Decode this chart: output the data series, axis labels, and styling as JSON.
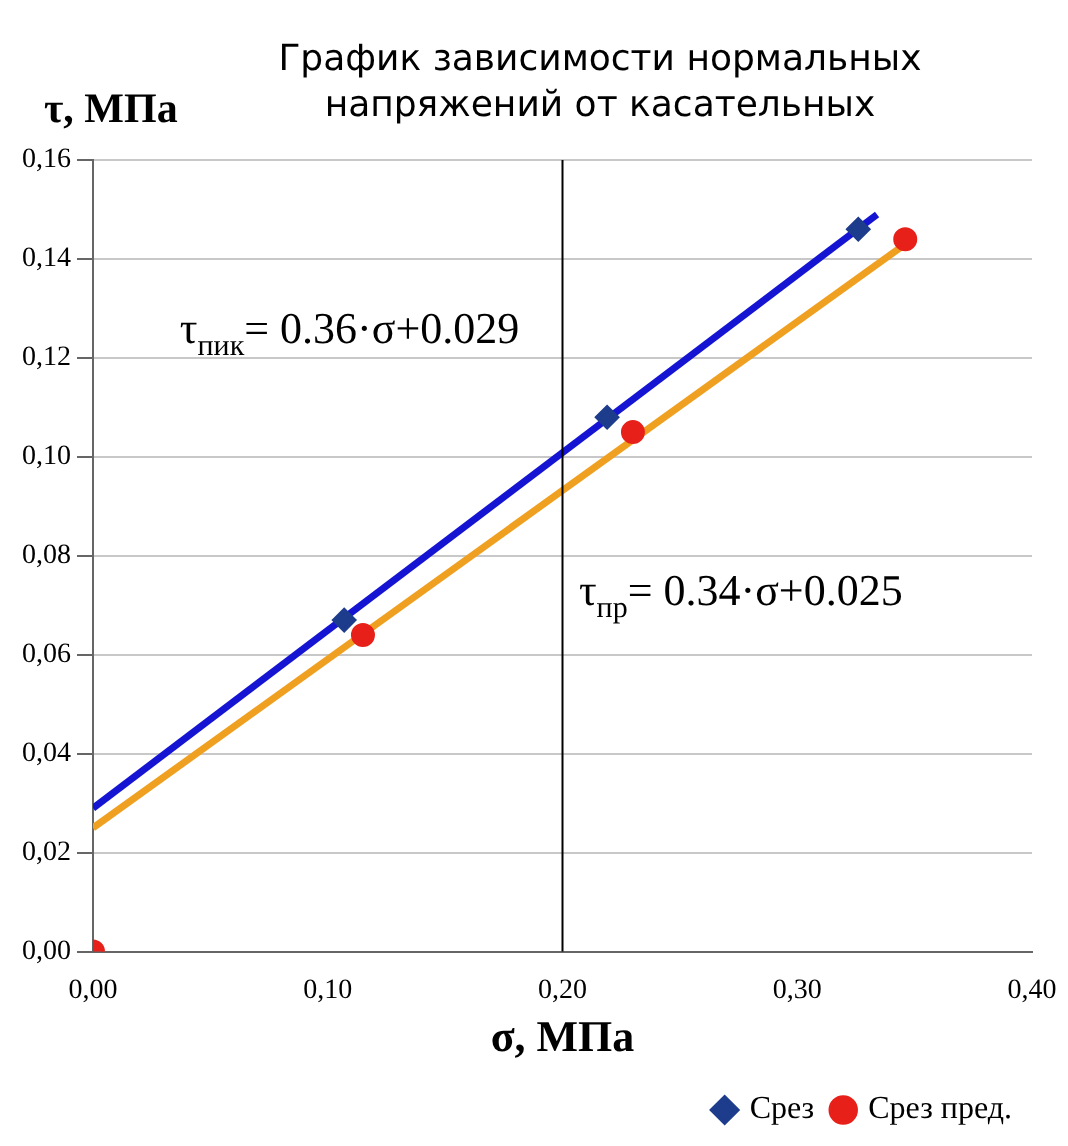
{
  "chart_data": {
    "type": "scatter",
    "title": "График зависимости нормальных напряжений от касательных",
    "xlabel": "σ, МПа",
    "ylabel": "τ, МПа",
    "xlim": [
      0,
      0.4
    ],
    "xticks": [
      {
        "value": 0,
        "label": "0,00"
      },
      {
        "value": 0.1,
        "label": "0,10"
      },
      {
        "value": 0.2,
        "label": "0,20"
      },
      {
        "value": 0.3,
        "label": "0,30"
      },
      {
        "value": 0.4,
        "label": "0,40"
      }
    ],
    "ylim": [
      0,
      0.16
    ],
    "yticks": [
      {
        "value": 0,
        "label": "0,00"
      },
      {
        "value": 0.02,
        "label": "0,02"
      },
      {
        "value": 0.04,
        "label": "0,04"
      },
      {
        "value": 0.06,
        "label": "0,06"
      },
      {
        "value": 0.08,
        "label": "0,08"
      },
      {
        "value": 0.1,
        "label": "0,10"
      },
      {
        "value": 0.12,
        "label": "0,12"
      },
      {
        "value": 0.14,
        "label": "0,14"
      },
      {
        "value": 0.16,
        "label": "0,16"
      }
    ],
    "grid": "y",
    "legend": "bottom right",
    "ref_lines": [
      {
        "axis": "x",
        "value": 0.2,
        "color": "#000000"
      }
    ],
    "series": [
      {
        "type": "line",
        "color": "#1414d2",
        "x": [
          0,
          0.334
        ],
        "values": [
          0.029,
          0.149
        ],
        "marker": "none"
      },
      {
        "type": "line",
        "color": "#f0a020",
        "x": [
          0,
          0.346
        ],
        "values": [
          0.025,
          0.143
        ],
        "marker": "none"
      },
      {
        "name": "Срез",
        "color": "#1e3c8c",
        "x": [
          0.107,
          0.219,
          0.326
        ],
        "values": [
          0.067,
          0.108,
          0.146
        ],
        "marker": "diamond"
      },
      {
        "name": "Срез пред.",
        "color": "#e8201a",
        "x": [
          0,
          0.115,
          0.23,
          0.346
        ],
        "values": [
          0,
          0.064,
          0.105,
          0.144
        ],
        "marker": "circle"
      }
    ],
    "annotations": [
      "τ$_{пик}$= 0.36·σ+0.029",
      "τ$_{пр}$= 0.34·σ+0.025"
    ]
  }
}
